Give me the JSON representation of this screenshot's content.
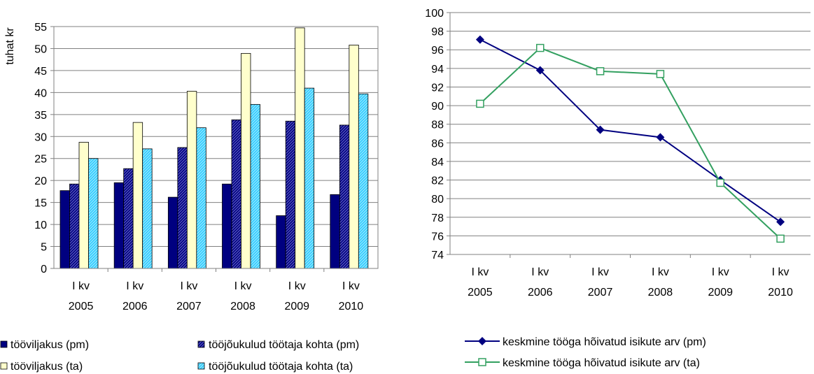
{
  "colors": {
    "tooviljakus_pm": "#000080",
    "toojoukulud_pm": "#1a1a9a",
    "tooviljakus_ta": "#ffffcc",
    "toojoukulud_ta": "#33ccff",
    "line_pm": "#000080",
    "line_ta": "#33a060",
    "grid": "#808080"
  },
  "chart_data": [
    {
      "type": "bar",
      "ylabel": "tuhat kr",
      "ylim": [
        0,
        55
      ],
      "yticks": [
        0,
        5,
        10,
        15,
        20,
        25,
        30,
        35,
        40,
        45,
        50,
        55
      ],
      "ytick_labels": [
        "0",
        "5",
        "10",
        "15",
        "20",
        "25",
        "30",
        "35",
        "40",
        "45",
        "50",
        "55"
      ],
      "grid": true,
      "legend_position": "bottom",
      "categories": [
        {
          "line1": "I kv",
          "line2": "2005"
        },
        {
          "line1": "I kv",
          "line2": "2006"
        },
        {
          "line1": "I kv",
          "line2": "2007"
        },
        {
          "line1": "I kv",
          "line2": "2008"
        },
        {
          "line1": "I kv",
          "line2": "2009"
        },
        {
          "line1": "I kv",
          "line2": "2010"
        }
      ],
      "series": [
        {
          "name": "tööviljakus (pm)",
          "values": [
            17.7,
            19.5,
            16.2,
            19.2,
            12.0,
            16.8
          ],
          "color": "#000080",
          "pattern": "solid"
        },
        {
          "name": "tööjõukulud töötaja kohta (pm)",
          "values": [
            19.2,
            22.7,
            27.5,
            33.8,
            33.5,
            32.6
          ],
          "color": "#1a1a9a",
          "pattern": "hatch"
        },
        {
          "name": "tööviljakus (ta)",
          "values": [
            28.7,
            33.2,
            40.3,
            48.9,
            54.7,
            50.8
          ],
          "color": "#ffffcc",
          "pattern": "solid"
        },
        {
          "name": "tööjõukulud töötaja kohta (ta)",
          "values": [
            25.0,
            27.2,
            32.0,
            37.3,
            41.0,
            39.7
          ],
          "color": "#33ccff",
          "pattern": "hatch-light"
        }
      ]
    },
    {
      "type": "line",
      "ylim": [
        74,
        100
      ],
      "yticks": [
        74,
        76,
        78,
        80,
        82,
        84,
        86,
        88,
        90,
        92,
        94,
        96,
        98,
        100
      ],
      "ytick_labels": [
        "74",
        "76",
        "78",
        "80",
        "82",
        "84",
        "86",
        "88",
        "90",
        "92",
        "94",
        "96",
        "98",
        "100"
      ],
      "grid": true,
      "legend_position": "bottom",
      "categories": [
        {
          "line1": "I kv",
          "line2": "2005"
        },
        {
          "line1": "I kv",
          "line2": "2006"
        },
        {
          "line1": "I kv",
          "line2": "2007"
        },
        {
          "line1": "I kv",
          "line2": "2008"
        },
        {
          "line1": "I kv",
          "line2": "2009"
        },
        {
          "line1": "I kv",
          "line2": "2010"
        }
      ],
      "series": [
        {
          "name": "keskmine tööga hõivatud isikute arv (pm)",
          "values": [
            97.1,
            93.8,
            87.4,
            86.6,
            82.0,
            77.5
          ],
          "color": "#000080",
          "marker": "diamond"
        },
        {
          "name": "keskmine tööga hõivatud isikute arv (ta)",
          "values": [
            90.2,
            96.2,
            93.7,
            93.4,
            81.7,
            75.7
          ],
          "color": "#33a060",
          "marker": "square-open"
        }
      ]
    }
  ]
}
